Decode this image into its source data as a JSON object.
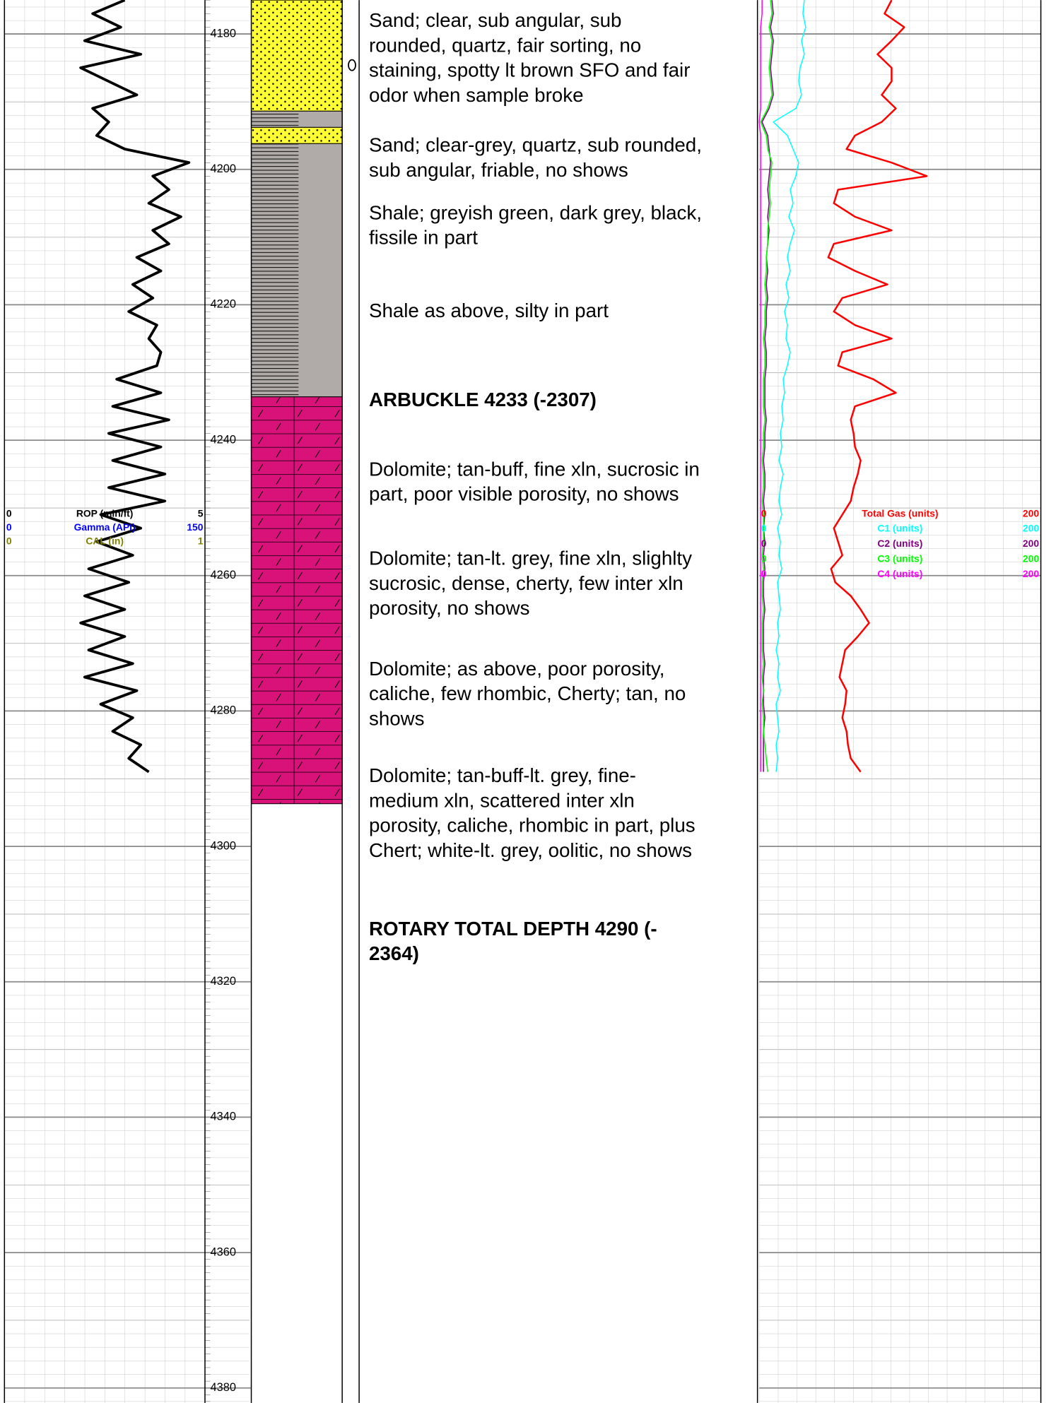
{
  "depth_track": {
    "ylim": [
      4175,
      4382.2
    ],
    "yticks": [
      4180,
      4200,
      4220,
      4240,
      4260,
      4280,
      4300,
      4320,
      4340,
      4360,
      4380
    ]
  },
  "rop_track": {
    "scales": [
      {
        "name": "ROP (min/ft)",
        "color": "#000000",
        "min": 0,
        "max": 5
      },
      {
        "name": "Gamma (API)",
        "color": "#0000ff",
        "min": 0,
        "max": 150
      },
      {
        "name": "CAL (in)",
        "color": "#808000",
        "min": 0,
        "max": 1
      }
    ],
    "x": [
      4175,
      4177,
      4179,
      4181,
      4183,
      4185,
      4187,
      4189,
      4191,
      4193,
      4195,
      4197,
      4199,
      4201,
      4203,
      4205,
      4207,
      4209,
      4211,
      4213,
      4215,
      4217,
      4219,
      4221,
      4223,
      4225,
      4227,
      4229,
      4231,
      4233,
      4235,
      4237,
      4239,
      4241,
      4243,
      4245,
      4247,
      4249,
      4251,
      4253,
      4255,
      4257,
      4259,
      4261,
      4263,
      4265,
      4267,
      4269,
      4271,
      4273,
      4275,
      4277,
      4279,
      4281,
      4283,
      4285,
      4287,
      4289
    ],
    "series": [
      {
        "name": "ROP (min/ft)",
        "color": "#000000",
        "values": [
          3.0,
          2.2,
          2.9,
          2.0,
          3.4,
          1.9,
          2.6,
          3.3,
          2.2,
          2.6,
          2.3,
          3.0,
          4.6,
          3.7,
          4.1,
          3.6,
          4.4,
          3.7,
          4.1,
          3.3,
          3.9,
          3.2,
          3.7,
          3.1,
          3.8,
          3.6,
          3.9,
          3.8,
          2.8,
          3.9,
          2.7,
          4.1,
          2.6,
          3.9,
          2.7,
          4.0,
          2.6,
          4.0,
          2.4,
          3.4,
          2.3,
          3.2,
          2.1,
          3.1,
          2.0,
          3.0,
          1.9,
          3.0,
          2.1,
          3.2,
          2.0,
          3.3,
          2.4,
          3.2,
          2.7,
          3.4,
          3.1,
          3.6
        ]
      }
    ]
  },
  "lithology": {
    "intervals": [
      {
        "top": 4175,
        "base": 4191.4,
        "color": "#ffff33",
        "pattern": "dots"
      },
      {
        "top": 4191.4,
        "base": 4193.8,
        "color": "#b0aba8",
        "pattern": "lines"
      },
      {
        "top": 4193.8,
        "base": 4196.2,
        "color": "#ffff33",
        "pattern": "dots"
      },
      {
        "top": 4196.2,
        "base": 4233.6,
        "color": "#b0aba8",
        "pattern": "lines"
      },
      {
        "top": 4233.6,
        "base": 4293.7,
        "color": "#d9127a",
        "pattern": "slashes"
      }
    ]
  },
  "descriptions": [
    {
      "lines": [
        "Sand; clear, sub angular, sub",
        "rounded, quartz, fair sorting, no",
        "staining, spotty lt brown SFO and fair",
        "odor when sample broke"
      ]
    },
    {
      "lines": [
        "Sand; clear-grey, quartz, sub rounded,",
        "sub angular, friable, no shows"
      ]
    },
    {
      "lines": [
        "Shale; greyish green, dark grey, black,",
        "fissile in part"
      ]
    },
    {
      "lines": [
        "Shale as above, silty in part"
      ]
    },
    {
      "lines": [
        "ARBUCKLE 4233 (-2307)"
      ],
      "bold": true
    },
    {
      "lines": [
        "Dolomite; tan-buff, fine xln, sucrosic in",
        "part, poor visible porosity, no shows"
      ]
    },
    {
      "lines": [
        "Dolomite; tan-lt. grey, fine xln, slighlty",
        "sucrosic, dense, cherty, few inter xln",
        "porosity, no shows"
      ]
    },
    {
      "lines": [
        "Dolomite; as above, poor porosity,",
        "caliche, few rhombic, Cherty; tan, no",
        "shows"
      ]
    },
    {
      "lines": [
        "Dolomite; tan-buff-lt. grey, fine-",
        "medium xln, scattered inter xln",
        "porosity, caliche, rhombic in part, plus",
        "Chert; white-lt. grey, oolitic, no shows"
      ]
    },
    {
      "lines": [
        "ROTARY TOTAL DEPTH 4290 (-",
        "2364)"
      ],
      "bold": true
    }
  ],
  "gas_track": {
    "scales": [
      {
        "name": "Total Gas (units)",
        "color": "#ff0000",
        "min": 0,
        "max": 200
      },
      {
        "name": "C1 (units)",
        "color": "#00ffff",
        "min": 0,
        "max": 200
      },
      {
        "name": "C2 (units)",
        "color": "#800080",
        "min": 0,
        "max": 200
      },
      {
        "name": "C3 (units)",
        "color": "#00ff00",
        "min": 0,
        "max": 200
      },
      {
        "name": "C4 (units)",
        "color": "#ff00ff",
        "min": 0,
        "max": 200
      }
    ],
    "x": [
      4175,
      4177,
      4179,
      4181,
      4183,
      4185,
      4187,
      4189,
      4191,
      4193,
      4195,
      4197,
      4199,
      4201,
      4203,
      4205,
      4207,
      4209,
      4211,
      4213,
      4215,
      4217,
      4219,
      4221,
      4223,
      4225,
      4227,
      4229,
      4231,
      4233,
      4235,
      4237,
      4239,
      4241,
      4243,
      4245,
      4247,
      4249,
      4251,
      4253,
      4255,
      4257,
      4259,
      4261,
      4263,
      4265,
      4267,
      4269,
      4271,
      4273,
      4275,
      4277,
      4279,
      4281,
      4283,
      4285,
      4287,
      4289
    ],
    "series": [
      {
        "name": "Total Gas (units)",
        "color": "#ff0000",
        "values": [
          94,
          89,
          103,
          94,
          84,
          94,
          94,
          87,
          97,
          87,
          68,
          62,
          94,
          119,
          56,
          53,
          68,
          94,
          53,
          49,
          68,
          91,
          59,
          53,
          68,
          94,
          59,
          56,
          81,
          97,
          68,
          65,
          67,
          68,
          72,
          70,
          67,
          65,
          59,
          53,
          56,
          59,
          51,
          54,
          65,
          72,
          78,
          70,
          61,
          59,
          57,
          62,
          61,
          59,
          62,
          63,
          65,
          72
        ]
      },
      {
        "name": "C1 (units)",
        "color": "#00ffff",
        "values": [
          32,
          31,
          33,
          30,
          32,
          29,
          28,
          30,
          26,
          10,
          20,
          24,
          28,
          26,
          22,
          24,
          21,
          25,
          22,
          20,
          22,
          19,
          21,
          18,
          20,
          19,
          22,
          20,
          17,
          18,
          16,
          17,
          15,
          16,
          14,
          17,
          15,
          14,
          16,
          13,
          15,
          14,
          16,
          13,
          14,
          15,
          13,
          14,
          12,
          14,
          13,
          15,
          12,
          13,
          14,
          12,
          13,
          12
        ]
      },
      {
        "name": "C2 (units)",
        "color": "#800080",
        "values": [
          9,
          10,
          8,
          10,
          9,
          8,
          9,
          10,
          7,
          2,
          6,
          7,
          8,
          7,
          6,
          7,
          6,
          7,
          6,
          5,
          6,
          5,
          6,
          5,
          5,
          4,
          5,
          5,
          4,
          4,
          4,
          5,
          4,
          4,
          3,
          4,
          4,
          3,
          4,
          3,
          4,
          3,
          4,
          3,
          3,
          4,
          3,
          3,
          3,
          4,
          3,
          3,
          3,
          4,
          3,
          3,
          3,
          3
        ]
      },
      {
        "name": "C3 (units)",
        "color": "#00ff00",
        "values": [
          8,
          9,
          7,
          9,
          8,
          7,
          8,
          9,
          6,
          1,
          5,
          6,
          9,
          8,
          7,
          8,
          7,
          6,
          6,
          5,
          5,
          4,
          5,
          4,
          4,
          3,
          4,
          4,
          3,
          3,
          3,
          4,
          3,
          3,
          2,
          3,
          3,
          2,
          3,
          3,
          3,
          2,
          3,
          2,
          2,
          3,
          2,
          2,
          2,
          3,
          2,
          3,
          2,
          3,
          3,
          4,
          5,
          6
        ]
      },
      {
        "name": "C4 (units)",
        "color": "#ff00ff",
        "values": [
          2,
          2,
          1,
          1,
          1,
          1,
          1,
          1,
          1,
          0,
          1,
          1,
          1,
          1,
          1,
          1,
          1,
          1,
          1,
          1,
          1,
          1,
          1,
          1,
          1,
          1,
          1,
          1,
          1,
          1,
          1,
          1,
          1,
          1,
          1,
          1,
          1,
          1,
          1,
          1,
          1,
          1,
          1,
          1,
          1,
          1,
          1,
          1,
          1,
          1,
          1,
          1,
          1,
          1,
          1,
          1,
          1,
          1
        ]
      }
    ]
  }
}
